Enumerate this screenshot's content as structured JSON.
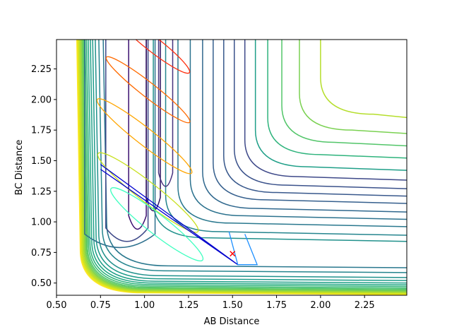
{
  "chart_data": {
    "type": "contour",
    "title": "",
    "xlabel": "AB Distance",
    "ylabel": "BC Distance",
    "xlim": [
      0.5,
      2.49
    ],
    "ylim": [
      0.4,
      2.49
    ],
    "xticks": [
      "0.50",
      "0.75",
      "1.00",
      "1.25",
      "1.50",
      "1.75",
      "2.00",
      "2.25"
    ],
    "yticks": [
      "0.50",
      "0.75",
      "1.00",
      "1.25",
      "1.50",
      "1.75",
      "2.00",
      "2.25"
    ],
    "xtick_values": [
      0.5,
      0.75,
      1.0,
      1.25,
      1.5,
      1.75,
      2.0,
      2.25
    ],
    "ytick_values": [
      0.5,
      0.75,
      1.0,
      1.25,
      1.5,
      1.75,
      2.0,
      2.25
    ],
    "contour_colormap": "viridis",
    "contours": [
      {
        "color": "#fde725",
        "x0": 0.635,
        "y0": 0.42
      },
      {
        "color": "#e8e419",
        "x0": 0.64,
        "y0": 0.425
      },
      {
        "color": "#d2e21b",
        "x0": 0.645,
        "y0": 0.43
      },
      {
        "color": "#bddf26",
        "x0": 0.65,
        "y0": 0.435
      },
      {
        "color": "#a8db34",
        "x0": 0.655,
        "y0": 0.44
      },
      {
        "color": "#93d741",
        "x0": 0.66,
        "y0": 0.445
      },
      {
        "color": "#7ad151",
        "x0": 0.665,
        "y0": 0.45
      },
      {
        "color": "#65cb5e",
        "x0": 0.67,
        "y0": 0.457
      },
      {
        "color": "#52c569",
        "x0": 0.675,
        "y0": 0.465
      },
      {
        "color": "#3fbc73",
        "x0": 0.682,
        "y0": 0.475
      },
      {
        "color": "#2eb37c",
        "x0": 0.69,
        "y0": 0.487
      },
      {
        "color": "#22a884",
        "x0": 0.7,
        "y0": 0.5
      },
      {
        "color": "#1f9f88",
        "x0": 0.712,
        "y0": 0.515
      },
      {
        "color": "#1e9b8a",
        "x0": 0.725,
        "y0": 0.535
      },
      {
        "color": "#21918c",
        "x0": 0.74,
        "y0": 0.56
      },
      {
        "color": "#25858e",
        "x0": 0.76,
        "y0": 0.6
      },
      {
        "color": "#2a788e",
        "x0": 0.785,
        "y0": 0.64
      }
    ],
    "trajectories": [
      {
        "name": "",
        "color": "#0000cd",
        "x": [
          0.75,
          1.53,
          0.75
        ],
        "y": [
          1.47,
          0.65,
          1.43
        ]
      },
      {
        "name": "",
        "color": "#1e90ff",
        "x": [
          1.48,
          1.53,
          1.64,
          1.57
        ],
        "y": [
          0.92,
          0.65,
          0.65,
          0.9
        ]
      }
    ],
    "marker": {
      "x": 1.5,
      "y": 0.74,
      "color": "#ff0000",
      "symbol": "x"
    }
  }
}
